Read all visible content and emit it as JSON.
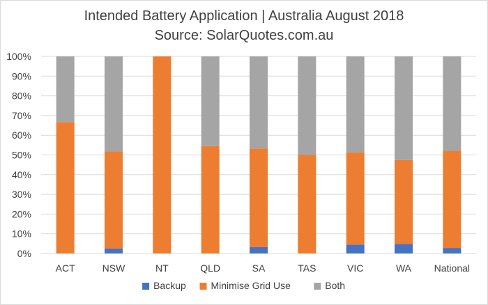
{
  "chart_data": {
    "type": "bar",
    "stacked": "percent",
    "title": "Intended Battery Application | Australia August 2018",
    "subtitle": "Source: SolarQuotes.com.au",
    "categories": [
      "ACT",
      "NSW",
      "NT",
      "QLD",
      "SA",
      "TAS",
      "VIC",
      "WA",
      "National"
    ],
    "series": [
      {
        "name": "Backup",
        "color": "#4472c4",
        "values": [
          0,
          2.5,
          0,
          0,
          3.2,
          0,
          4.5,
          4.8,
          2.8
        ]
      },
      {
        "name": "Minimise Grid Use",
        "color": "#ed7d31",
        "values": [
          66.7,
          49.3,
          100,
          54.5,
          50.1,
          50,
          46.8,
          42.6,
          49.3
        ]
      },
      {
        "name": "Both",
        "color": "#a5a5a5",
        "values": [
          33.3,
          48.2,
          0,
          45.5,
          46.7,
          50,
          48.7,
          52.6,
          47.9
        ]
      }
    ],
    "ylim": [
      0,
      100
    ],
    "yticks": [
      "0%",
      "10%",
      "20%",
      "30%",
      "40%",
      "50%",
      "60%",
      "70%",
      "80%",
      "90%",
      "100%"
    ],
    "grid": true,
    "legend": "bottom"
  }
}
